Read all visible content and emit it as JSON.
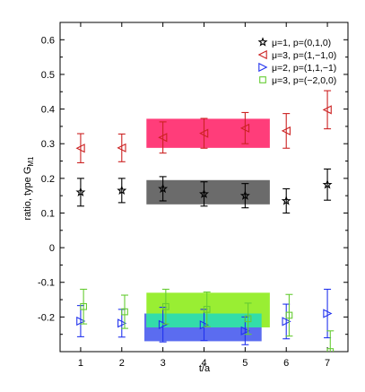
{
  "chart_data": {
    "type": "scatter",
    "xlabel": "t/a",
    "ylabel_main": "ratio, type G",
    "ylabel_sub": "M1",
    "xlim": [
      0.5,
      7.5
    ],
    "ylim": [
      -0.3,
      0.65
    ],
    "xticks": [
      1,
      2,
      3,
      4,
      5,
      6,
      7
    ],
    "yticks": [
      -0.2,
      -0.1,
      0,
      0.1,
      0.2,
      0.3,
      0.4,
      0.5,
      0.6
    ],
    "ytick_labels": [
      "-0.2",
      "-0.1",
      "0",
      "0.1",
      "0.2",
      "0.3",
      "0.4",
      "0.5",
      "0.6"
    ],
    "grid": false,
    "legend_position": "top-right",
    "series": [
      {
        "name": "μ=1, p=(0,1,0)",
        "marker": "star",
        "color": "#000000",
        "offset": 0,
        "points": [
          {
            "x": 1,
            "y": 0.16,
            "err": 0.04
          },
          {
            "x": 2,
            "y": 0.165,
            "err": 0.035
          },
          {
            "x": 3,
            "y": 0.17,
            "err": 0.035
          },
          {
            "x": 4,
            "y": 0.155,
            "err": 0.035
          },
          {
            "x": 5,
            "y": 0.15,
            "err": 0.035
          },
          {
            "x": 6,
            "y": 0.135,
            "err": 0.035
          },
          {
            "x": 7,
            "y": 0.182,
            "err": 0.045
          }
        ],
        "band": {
          "x_from": 2.6,
          "x_to": 5.6,
          "center": 0.16,
          "half_width": 0.035,
          "color": "#6b6b6b"
        }
      },
      {
        "name": "μ=3, p=(1,−1,0)",
        "marker": "triangle-left",
        "color": "#cc2222",
        "offset": 0,
        "points": [
          {
            "x": 1,
            "y": 0.287,
            "err": 0.042
          },
          {
            "x": 2,
            "y": 0.288,
            "err": 0.04
          },
          {
            "x": 3,
            "y": 0.318,
            "err": 0.045
          },
          {
            "x": 4,
            "y": 0.33,
            "err": 0.043
          },
          {
            "x": 5,
            "y": 0.345,
            "err": 0.045
          },
          {
            "x": 6,
            "y": 0.337,
            "err": 0.05
          },
          {
            "x": 7,
            "y": 0.398,
            "err": 0.055
          }
        ],
        "band": {
          "x_from": 2.6,
          "x_to": 5.6,
          "center": 0.33,
          "half_width": 0.042,
          "color": "#ff3d7a"
        }
      },
      {
        "name": "μ=2, p=(1,1,−1)",
        "marker": "triangle-right",
        "color": "#2233ee",
        "offset": 0,
        "points": [
          {
            "x": 1,
            "y": -0.212,
            "err": 0.045
          },
          {
            "x": 2,
            "y": -0.218,
            "err": 0.04
          },
          {
            "x": 3,
            "y": -0.222,
            "err": 0.05
          },
          {
            "x": 4,
            "y": -0.223,
            "err": 0.045
          },
          {
            "x": 5,
            "y": -0.24,
            "err": 0.04
          },
          {
            "x": 6,
            "y": -0.213,
            "err": 0.05
          },
          {
            "x": 7,
            "y": -0.19,
            "err": 0.07
          }
        ],
        "band": {
          "x_from": 2.55,
          "x_to": 5.4,
          "center": -0.23,
          "half_width": 0.04,
          "color": "#5b6cf0"
        }
      },
      {
        "name": "μ=3, p=(−2,0,0)",
        "marker": "square",
        "color": "#66cc33",
        "offset": 0.07,
        "points": [
          {
            "x": 1,
            "y": -0.17,
            "err": 0.05
          },
          {
            "x": 2,
            "y": -0.185,
            "err": 0.048
          },
          {
            "x": 3,
            "y": -0.17,
            "err": 0.05
          },
          {
            "x": 4,
            "y": -0.178,
            "err": 0.05
          },
          {
            "x": 5,
            "y": -0.205,
            "err": 0.045
          },
          {
            "x": 6,
            "y": -0.195,
            "err": 0.06
          },
          {
            "x": 7,
            "y": -0.3,
            "err": 0.06
          }
        ],
        "band": {
          "x_from": 2.6,
          "x_to": 5.6,
          "center": -0.18,
          "half_width": 0.05,
          "color": "#99ee33"
        }
      }
    ],
    "overlap_band": {
      "x_from": 2.6,
      "x_to": 5.4,
      "y_from": -0.23,
      "y_to": -0.19,
      "color": "#33ddaa"
    }
  }
}
